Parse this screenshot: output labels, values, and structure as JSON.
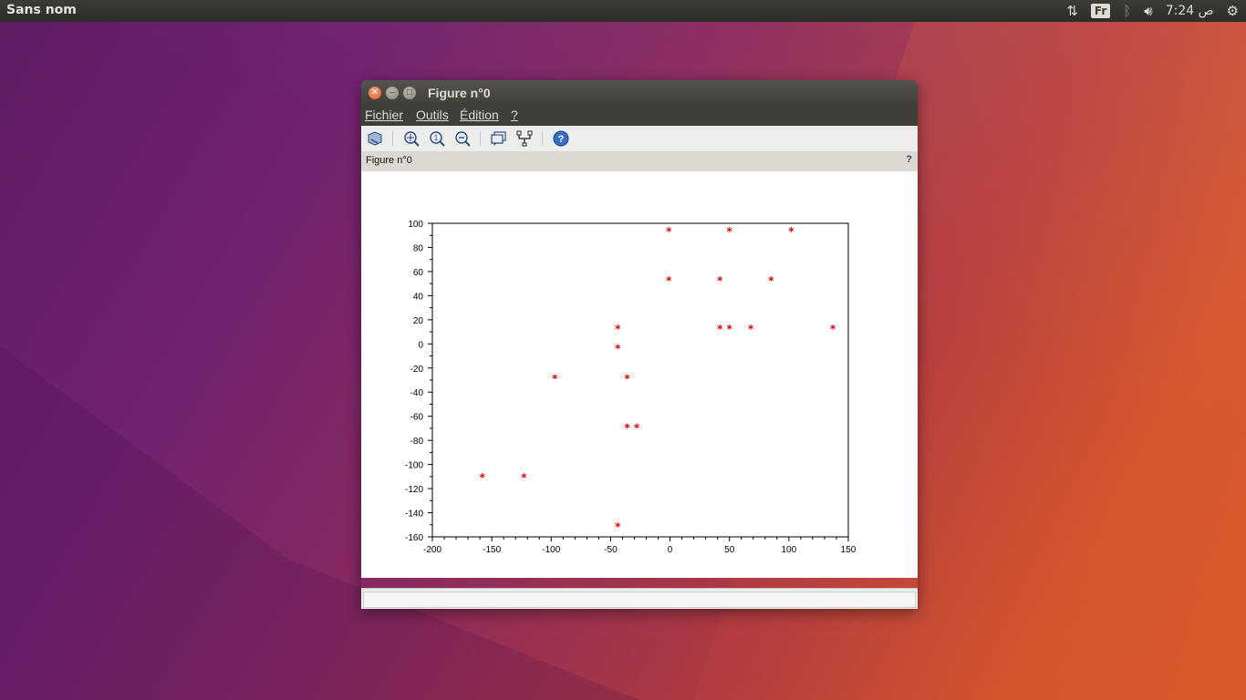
{
  "topbar": {
    "app_name": "Sans nom",
    "keyboard_layout": "Fr",
    "clock": "7:24 ص"
  },
  "window": {
    "title": "Figure n°0",
    "menu": [
      "Fichier",
      "Outils",
      "Édition",
      "?"
    ],
    "toolbar_icons": [
      "rotate-icon",
      "zoom-in-icon",
      "zoom-reset-icon",
      "zoom-out-icon",
      "datatip-icon",
      "datatip-edit-icon",
      "help-icon"
    ],
    "infobar_label": "Figure n°0",
    "infobar_help": "?"
  },
  "chart_data": {
    "type": "scatter",
    "marker": "*",
    "marker_color": "#e00000",
    "xlim": [
      -200,
      150
    ],
    "ylim": [
      -160,
      100
    ],
    "xticks": [
      -200,
      -150,
      -100,
      -50,
      0,
      50,
      100,
      150
    ],
    "yticks": [
      100,
      80,
      60,
      40,
      20,
      0,
      -20,
      -40,
      -60,
      -80,
      -100,
      -120,
      -140,
      -160
    ],
    "points": [
      [
        -158,
        -110
      ],
      [
        -123,
        -110
      ],
      [
        -97,
        -28
      ],
      [
        -44,
        13
      ],
      [
        -44,
        -3
      ],
      [
        -44,
        -151
      ],
      [
        -36,
        -28
      ],
      [
        -36,
        -69
      ],
      [
        -28,
        -69
      ],
      [
        -1,
        94
      ],
      [
        -1,
        53
      ],
      [
        42,
        53
      ],
      [
        42,
        13
      ],
      [
        50,
        94
      ],
      [
        50,
        13
      ],
      [
        68,
        13
      ],
      [
        85,
        53
      ],
      [
        102,
        94
      ],
      [
        137,
        13
      ]
    ]
  }
}
